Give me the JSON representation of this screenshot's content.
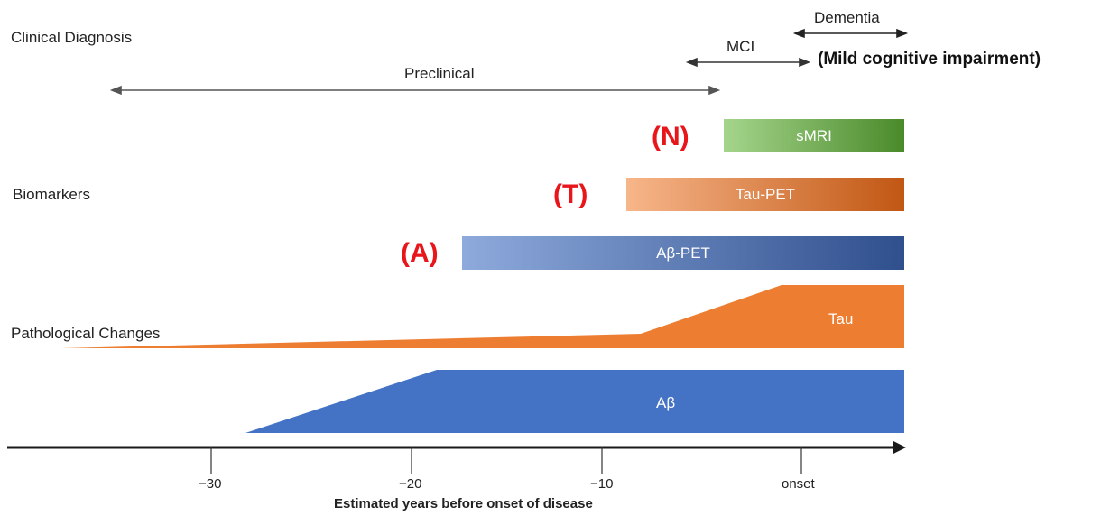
{
  "rows": {
    "clinical": "Clinical Diagnosis",
    "biomarkers": "Biomarkers",
    "pathological": "Pathological Changes"
  },
  "stages": {
    "preclinical": "Preclinical",
    "mci": "MCI",
    "dementia": "Dementia",
    "mci_full": "(Mild cognitive impairment)"
  },
  "biomarkers": {
    "n": {
      "tag": "(N)",
      "label": "sMRI",
      "color_start": "#a5d58c",
      "color_end": "#4a8a2a"
    },
    "t": {
      "tag": "(T)",
      "label": "Tau-PET",
      "color_start": "#f7b68a",
      "color_end": "#c15713"
    },
    "a": {
      "tag": "(A)",
      "label": "Aβ-PET",
      "color_start": "#8eaadc",
      "color_end": "#2f4f8d"
    }
  },
  "pathology": {
    "tau": {
      "label": "Tau",
      "color": "#ed7d31"
    },
    "abeta": {
      "label": "Aβ",
      "color": "#4472c4"
    }
  },
  "axis": {
    "ticks": [
      "−30",
      "−20",
      "−10",
      "onset"
    ],
    "label": "Estimated years before onset of disease"
  }
}
